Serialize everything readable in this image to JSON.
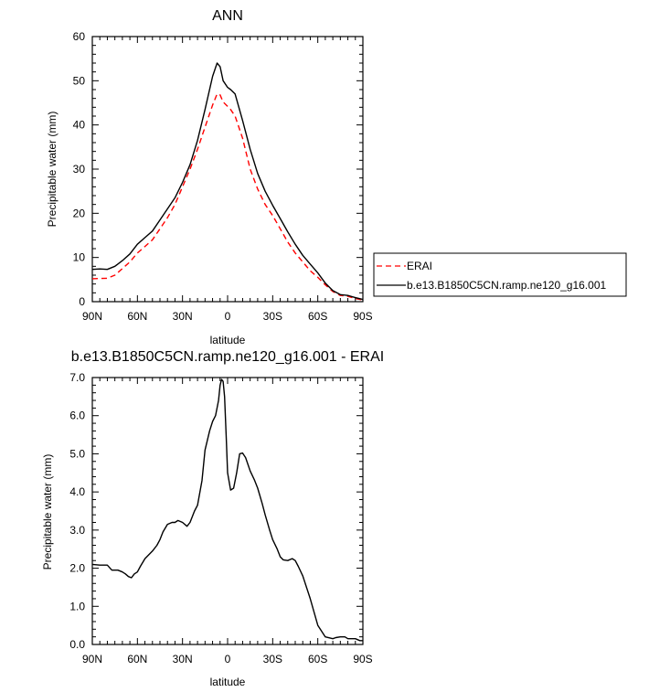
{
  "chart_data": [
    {
      "type": "line",
      "title": "ANN",
      "xlabel": "latitude",
      "ylabel": "Precipitable water (mm)",
      "xlim": [
        90,
        -90
      ],
      "ylim": [
        0,
        60
      ],
      "x_ticks": [
        "90N",
        "60N",
        "30N",
        "0",
        "30S",
        "60S",
        "90S"
      ],
      "y_ticks": [
        "0",
        "10",
        "20",
        "30",
        "40",
        "50",
        "60"
      ],
      "legend": {
        "placement": "right",
        "entries": [
          "ERAI",
          "b.e13.B1850C5CN.ramp.ne120_g16.001"
        ]
      },
      "series": [
        {
          "name": "ERAI",
          "color": "#ff0000",
          "dash": "dashed",
          "x": [
            90,
            80,
            75,
            70,
            65,
            60,
            55,
            50,
            45,
            40,
            35,
            30,
            25,
            20,
            15,
            10,
            7,
            5,
            3,
            0,
            -2,
            -5,
            -10,
            -15,
            -20,
            -25,
            -30,
            -35,
            -40,
            -45,
            -50,
            -55,
            -60,
            -65,
            -70,
            -75,
            -80,
            -85,
            -90
          ],
          "y": [
            5.2,
            5.3,
            6.0,
            7.5,
            9.0,
            11.0,
            12.5,
            14.0,
            16.5,
            19.0,
            22.0,
            26.0,
            30.0,
            34.5,
            39.5,
            44.5,
            47.0,
            46.8,
            45.2,
            44.2,
            43.5,
            42.0,
            37.0,
            30.0,
            25.5,
            22.0,
            19.5,
            16.5,
            13.5,
            11.0,
            9.0,
            7.0,
            5.5,
            3.8,
            2.3,
            1.4,
            1.2,
            0.7,
            0.4
          ]
        },
        {
          "name": "b.e13.B1850C5CN.ramp.ne120_g16.001",
          "color": "#000000",
          "dash": "solid",
          "x": [
            90,
            85,
            80,
            75,
            70,
            65,
            60,
            55,
            50,
            45,
            40,
            35,
            30,
            25,
            20,
            15,
            10,
            7,
            5,
            3,
            0,
            -2,
            -5,
            -10,
            -15,
            -20,
            -25,
            -30,
            -35,
            -40,
            -45,
            -50,
            -55,
            -60,
            -65,
            -70,
            -75,
            -80,
            -85,
            -90
          ],
          "y": [
            7.3,
            7.4,
            7.3,
            8.0,
            9.3,
            10.8,
            13.0,
            14.5,
            16.0,
            18.5,
            21.0,
            23.5,
            27.0,
            31.0,
            36.5,
            43.5,
            51.0,
            54.0,
            53.2,
            50.0,
            48.5,
            48.0,
            47.0,
            41.0,
            34.5,
            29.0,
            25.0,
            21.8,
            18.8,
            15.8,
            13.0,
            10.5,
            8.5,
            6.5,
            4.2,
            2.5,
            1.6,
            1.4,
            0.9,
            0.5
          ]
        }
      ]
    },
    {
      "type": "line",
      "title": "b.e13.B1850C5CN.ramp.ne120_g16.001 - ERAI",
      "xlabel": "latitude",
      "ylabel": "Precipitable water (mm)",
      "xlim": [
        90,
        -90
      ],
      "ylim": [
        0,
        7
      ],
      "x_ticks": [
        "90N",
        "60N",
        "30N",
        "0",
        "30S",
        "60S",
        "90S"
      ],
      "y_ticks": [
        "0.0",
        "1.0",
        "2.0",
        "3.0",
        "4.0",
        "5.0",
        "6.0",
        "7.0"
      ],
      "series": [
        {
          "color": "#000000",
          "dash": "solid",
          "x": [
            90,
            85,
            80,
            77,
            73,
            70,
            68,
            66,
            64,
            62,
            60,
            58,
            55,
            50,
            47,
            45,
            43,
            40,
            37,
            35,
            33,
            30,
            27,
            25,
            22,
            20,
            17,
            15,
            12,
            10,
            8,
            6,
            5,
            4,
            3,
            2,
            1,
            0,
            -2,
            -4,
            -6,
            -8,
            -10,
            -12,
            -15,
            -18,
            -20,
            -23,
            -25,
            -28,
            -30,
            -33,
            -35,
            -37,
            -40,
            -43,
            -45,
            -47,
            -50,
            -55,
            -60,
            -65,
            -70,
            -72,
            -75,
            -78,
            -80,
            -83,
            -85,
            -88,
            -90
          ],
          "y": [
            2.1,
            2.08,
            2.08,
            1.95,
            1.95,
            1.9,
            1.85,
            1.78,
            1.75,
            1.85,
            1.9,
            2.05,
            2.25,
            2.45,
            2.6,
            2.75,
            2.95,
            3.15,
            3.2,
            3.2,
            3.25,
            3.2,
            3.1,
            3.2,
            3.5,
            3.65,
            4.3,
            5.1,
            5.6,
            5.85,
            6.0,
            6.4,
            6.8,
            6.95,
            6.9,
            6.5,
            5.5,
            4.5,
            4.05,
            4.1,
            4.5,
            5.0,
            5.02,
            4.9,
            4.55,
            4.3,
            4.1,
            3.7,
            3.4,
            3.0,
            2.75,
            2.5,
            2.3,
            2.22,
            2.2,
            2.25,
            2.2,
            2.05,
            1.8,
            1.2,
            0.5,
            0.2,
            0.15,
            0.18,
            0.2,
            0.2,
            0.15,
            0.15,
            0.15,
            0.1,
            0.1
          ]
        }
      ]
    }
  ]
}
